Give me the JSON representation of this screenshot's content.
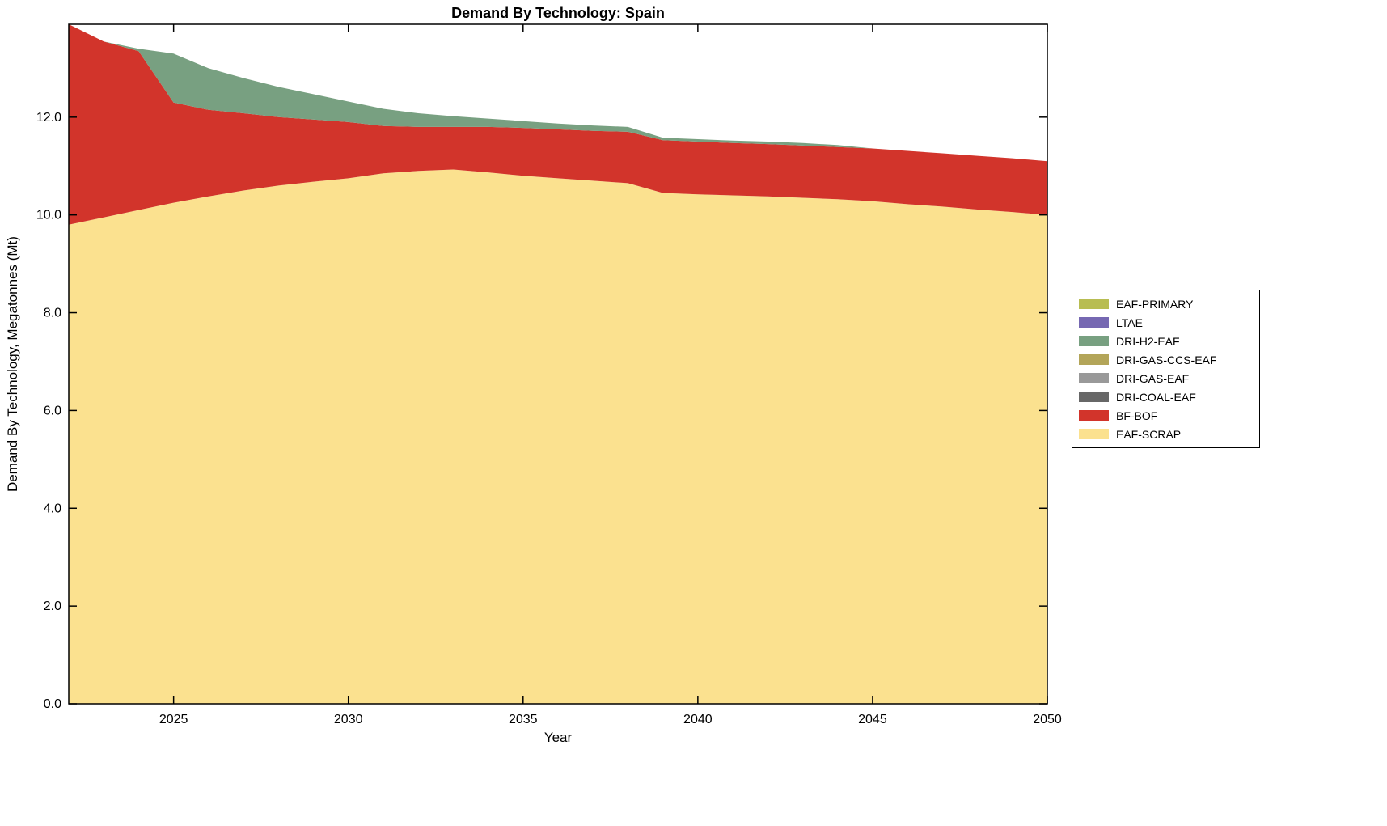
{
  "page": {
    "background": "#ffffff",
    "text_color": "#000000"
  },
  "chart_data": {
    "type": "area",
    "title": "Demand By Technology: Spain",
    "xlabel": "Year",
    "ylabel": "Demand By Technology, Megatonnes (Mt)",
    "xlim": [
      2022,
      2050
    ],
    "ylim": [
      0,
      13.9
    ],
    "x_ticks": [
      2025,
      2030,
      2035,
      2040,
      2045,
      2050
    ],
    "x_tick_labels": [
      "2025",
      "2030",
      "2035",
      "2040",
      "2045",
      "2050"
    ],
    "y_ticks": [
      0,
      2,
      4,
      6,
      8,
      10,
      12
    ],
    "y_tick_labels": [
      "0.0",
      "2.0",
      "4.0",
      "6.0",
      "8.0",
      "10.0",
      "12.0"
    ],
    "grid": false,
    "legend_position": "right-outside",
    "x": [
      2022,
      2023,
      2024,
      2025,
      2026,
      2027,
      2028,
      2029,
      2030,
      2031,
      2032,
      2033,
      2034,
      2035,
      2036,
      2037,
      2038,
      2039,
      2040,
      2041,
      2042,
      2043,
      2044,
      2045,
      2046,
      2047,
      2048,
      2049,
      2050
    ],
    "stack_order": [
      "EAF-SCRAP",
      "BF-BOF",
      "DRI-COAL-EAF",
      "DRI-GAS-EAF",
      "DRI-GAS-CCS-EAF",
      "DRI-H2-EAF",
      "LTAE",
      "EAF-PRIMARY"
    ],
    "series": [
      {
        "name": "EAF-PRIMARY",
        "color": "#b8bd52",
        "values": [
          0,
          0,
          0,
          0,
          0,
          0,
          0,
          0,
          0,
          0,
          0,
          0,
          0,
          0,
          0,
          0,
          0,
          0,
          0,
          0,
          0,
          0,
          0,
          0,
          0,
          0,
          0,
          0,
          0
        ]
      },
      {
        "name": "LTAE",
        "color": "#7668b2",
        "values": [
          0,
          0,
          0,
          0,
          0,
          0,
          0,
          0,
          0,
          0,
          0,
          0,
          0,
          0,
          0,
          0,
          0,
          0,
          0,
          0,
          0,
          0,
          0,
          0,
          0,
          0,
          0,
          0,
          0
        ]
      },
      {
        "name": "DRI-H2-EAF",
        "color": "#78a081",
        "values": [
          0,
          0,
          0.05,
          1.0,
          0.85,
          0.72,
          0.62,
          0.52,
          0.42,
          0.35,
          0.28,
          0.22,
          0.17,
          0.14,
          0.12,
          0.11,
          0.1,
          0.05,
          0.05,
          0.05,
          0.05,
          0.05,
          0.04,
          0,
          0,
          0,
          0,
          0,
          0
        ]
      },
      {
        "name": "DRI-GAS-CCS-EAF",
        "color": "#b3a559",
        "values": [
          0,
          0,
          0,
          0,
          0,
          0,
          0,
          0,
          0,
          0,
          0,
          0,
          0,
          0,
          0,
          0,
          0,
          0,
          0,
          0,
          0,
          0,
          0,
          0,
          0,
          0,
          0,
          0,
          0
        ]
      },
      {
        "name": "DRI-GAS-EAF",
        "color": "#999999",
        "values": [
          0,
          0,
          0,
          0,
          0,
          0,
          0,
          0,
          0,
          0,
          0,
          0,
          0,
          0,
          0,
          0,
          0,
          0,
          0,
          0,
          0,
          0,
          0,
          0,
          0,
          0,
          0,
          0,
          0
        ]
      },
      {
        "name": "DRI-COAL-EAF",
        "color": "#676767",
        "values": [
          0,
          0,
          0,
          0,
          0,
          0,
          0,
          0,
          0,
          0,
          0,
          0,
          0,
          0,
          0,
          0,
          0,
          0,
          0,
          0,
          0,
          0,
          0,
          0,
          0,
          0,
          0,
          0,
          0
        ]
      },
      {
        "name": "BF-BOF",
        "color": "#d2342b",
        "values": [
          4.1,
          3.6,
          3.25,
          2.05,
          1.77,
          1.58,
          1.4,
          1.27,
          1.15,
          0.97,
          0.9,
          0.87,
          0.93,
          0.98,
          1.0,
          1.02,
          1.05,
          1.08,
          1.08,
          1.07,
          1.07,
          1.07,
          1.07,
          1.08,
          1.09,
          1.09,
          1.1,
          1.1,
          1.1
        ]
      },
      {
        "name": "EAF-SCRAP",
        "color": "#fbe18f",
        "values": [
          9.8,
          9.95,
          10.1,
          10.25,
          10.38,
          10.5,
          10.6,
          10.68,
          10.75,
          10.85,
          10.9,
          10.93,
          10.87,
          10.8,
          10.75,
          10.7,
          10.65,
          10.45,
          10.42,
          10.4,
          10.38,
          10.35,
          10.32,
          10.28,
          10.22,
          10.17,
          10.11,
          10.06,
          10.0
        ]
      }
    ]
  }
}
